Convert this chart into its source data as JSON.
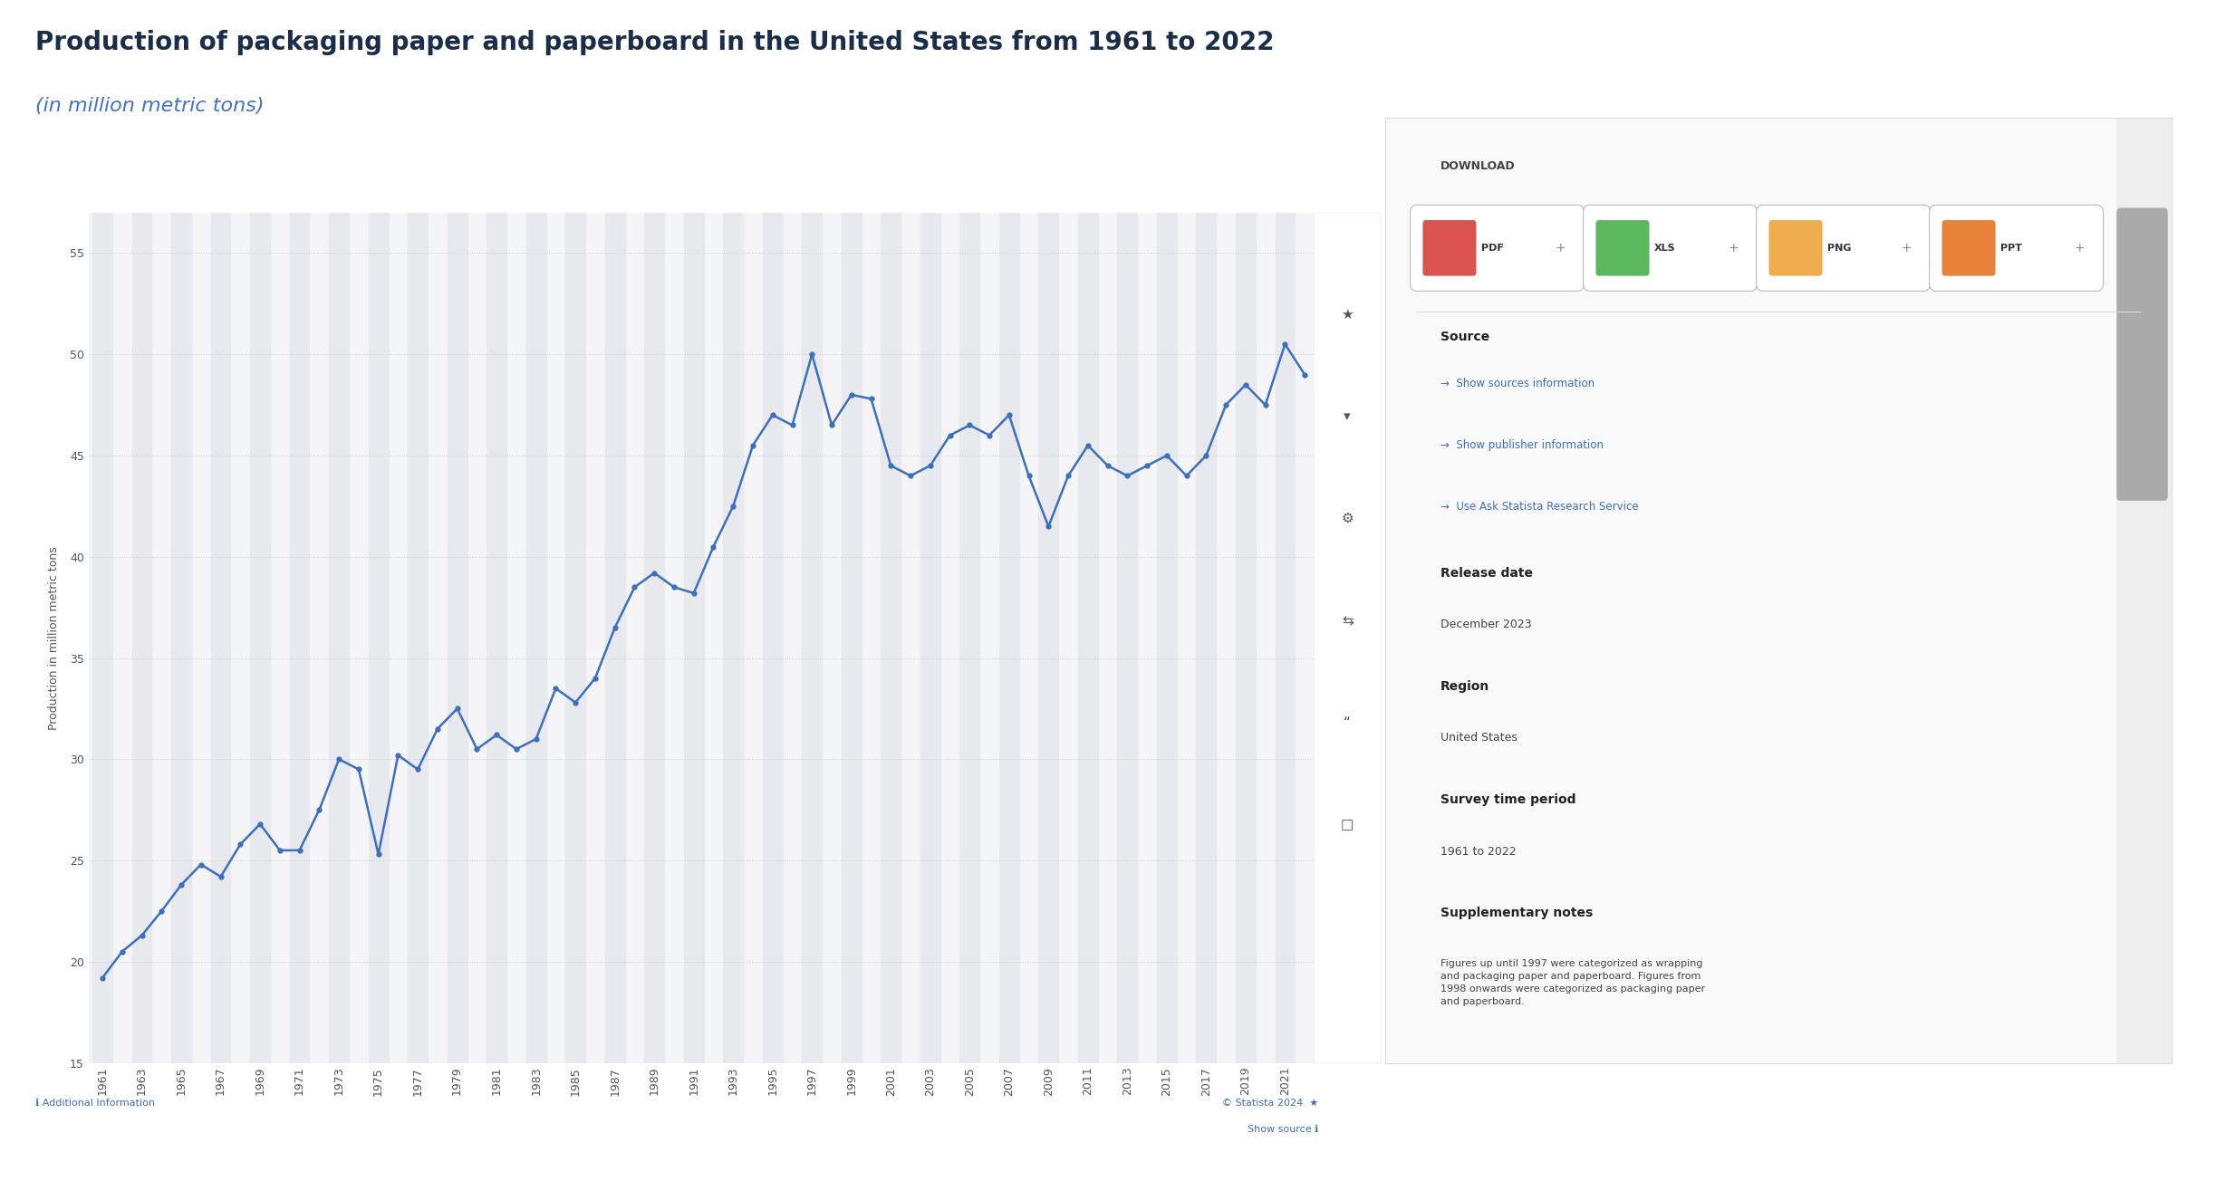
{
  "title": "Production of packaging paper and paperboard in the United States from 1961 to 2022",
  "subtitle": "(in million metric tons)",
  "ylabel": "Production in million metric tons",
  "title_color": "#1a2e4a",
  "subtitle_color": "#4472c4",
  "line_color": "#3d6fba",
  "marker_color": "#3d6fba",
  "bg_color": "#ffffff",
  "plot_bg_color": "#f5f5f8",
  "band_color": "#e8e8ef",
  "grid_color": "#cccccc",
  "yticks": [
    15,
    20,
    25,
    30,
    35,
    40,
    45,
    50,
    55
  ],
  "ylim": [
    15,
    57
  ],
  "years": [
    1961,
    1962,
    1963,
    1964,
    1965,
    1966,
    1967,
    1968,
    1969,
    1970,
    1971,
    1972,
    1973,
    1974,
    1975,
    1976,
    1977,
    1978,
    1979,
    1980,
    1981,
    1982,
    1983,
    1984,
    1985,
    1986,
    1987,
    1988,
    1989,
    1990,
    1991,
    1992,
    1993,
    1994,
    1995,
    1996,
    1997,
    1998,
    1999,
    2000,
    2001,
    2002,
    2003,
    2004,
    2005,
    2006,
    2007,
    2008,
    2009,
    2010,
    2011,
    2012,
    2013,
    2014,
    2015,
    2016,
    2017,
    2018,
    2019,
    2020,
    2021,
    2022
  ],
  "values": [
    19.2,
    20.5,
    21.3,
    22.5,
    23.8,
    24.8,
    24.2,
    25.8,
    26.8,
    25.5,
    25.5,
    27.5,
    30.0,
    29.5,
    25.3,
    30.2,
    29.5,
    31.5,
    32.5,
    30.5,
    31.2,
    30.5,
    31.0,
    33.5,
    32.8,
    34.0,
    36.5,
    38.5,
    39.2,
    38.5,
    38.2,
    40.5,
    42.5,
    45.5,
    47.0,
    46.5,
    50.0,
    46.5,
    48.0,
    47.8,
    44.5,
    44.0,
    44.5,
    46.0,
    46.5,
    46.0,
    47.0,
    44.0,
    41.5,
    44.0,
    45.5,
    44.5,
    44.0,
    44.5,
    45.0,
    44.0,
    45.0,
    47.5,
    48.5,
    47.5,
    50.5,
    49.0
  ],
  "xtick_years": [
    1961,
    1963,
    1965,
    1967,
    1969,
    1971,
    1973,
    1975,
    1977,
    1979,
    1981,
    1983,
    1985,
    1987,
    1989,
    1991,
    1993,
    1995,
    1997,
    1999,
    2001,
    2003,
    2005,
    2007,
    2009,
    2011,
    2013,
    2015,
    2017,
    2019,
    2021
  ],
  "icon_buttons": [
    {
      "label": "PDF",
      "color": "#d9534f"
    },
    {
      "label": "XLS",
      "color": "#5cb85c"
    },
    {
      "label": "PNG",
      "color": "#f0ad4e"
    },
    {
      "label": "PPT",
      "color": "#e8823a"
    }
  ],
  "source_links": [
    "→  Show sources information",
    "→  Show publisher information",
    "→  Use Ask Statista Research Service"
  ],
  "release_date": "December 2023",
  "region": "United States",
  "survey_period": "1961 to 2022",
  "notes": "Figures up until 1997 were categorized as wrapping\nand packaging paper and paperboard. Figures from\n1998 onwards were categorized as packaging paper\nand paperboard."
}
